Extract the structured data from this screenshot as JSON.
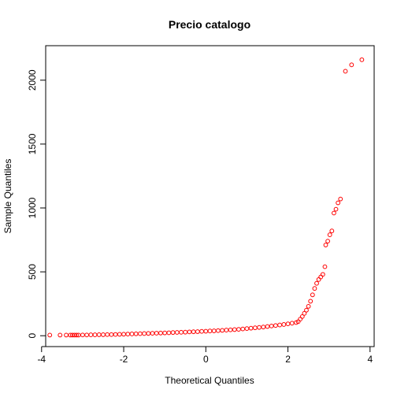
{
  "chart_data": {
    "type": "scatter",
    "title": "Precio catalogo",
    "xlabel": "Theoretical Quantiles",
    "ylabel": "Sample Quantiles",
    "xlim": [
      -3.9,
      4.1
    ],
    "ylim": [
      -85,
      2270
    ],
    "x_ticks": [
      -4,
      -2,
      0,
      2,
      4
    ],
    "y_ticks": [
      0,
      500,
      1000,
      1500,
      2000
    ],
    "point_color": "#ff0000",
    "marker": "open-circle",
    "grid": false,
    "series": [
      {
        "points": [
          [
            -3.8,
            5
          ],
          [
            -3.55,
            5
          ],
          [
            -3.4,
            5
          ],
          [
            -3.3,
            5
          ],
          [
            -3.25,
            5
          ],
          [
            -3.2,
            5
          ],
          [
            -3.15,
            5
          ],
          [
            -3.1,
            5
          ],
          [
            -3.0,
            6
          ],
          [
            -2.9,
            6
          ],
          [
            -2.8,
            7
          ],
          [
            -2.7,
            7
          ],
          [
            -2.6,
            8
          ],
          [
            -2.5,
            8
          ],
          [
            -2.4,
            9
          ],
          [
            -2.3,
            9
          ],
          [
            -2.2,
            10
          ],
          [
            -2.1,
            11
          ],
          [
            -2.0,
            12
          ],
          [
            -1.9,
            13
          ],
          [
            -1.8,
            14
          ],
          [
            -1.7,
            15
          ],
          [
            -1.6,
            16
          ],
          [
            -1.5,
            17
          ],
          [
            -1.4,
            18
          ],
          [
            -1.3,
            19
          ],
          [
            -1.2,
            20
          ],
          [
            -1.1,
            21
          ],
          [
            -1.0,
            22
          ],
          [
            -0.9,
            23
          ],
          [
            -0.8,
            25
          ],
          [
            -0.7,
            26
          ],
          [
            -0.6,
            27
          ],
          [
            -0.5,
            28
          ],
          [
            -0.4,
            30
          ],
          [
            -0.3,
            31
          ],
          [
            -0.2,
            32
          ],
          [
            -0.1,
            34
          ],
          [
            0.0,
            35
          ],
          [
            0.1,
            37
          ],
          [
            0.2,
            38
          ],
          [
            0.3,
            40
          ],
          [
            0.4,
            42
          ],
          [
            0.5,
            44
          ],
          [
            0.6,
            46
          ],
          [
            0.7,
            48
          ],
          [
            0.8,
            50
          ],
          [
            0.9,
            53
          ],
          [
            1.0,
            56
          ],
          [
            1.1,
            59
          ],
          [
            1.2,
            62
          ],
          [
            1.3,
            65
          ],
          [
            1.4,
            68
          ],
          [
            1.5,
            72
          ],
          [
            1.6,
            76
          ],
          [
            1.7,
            80
          ],
          [
            1.8,
            84
          ],
          [
            1.9,
            88
          ],
          [
            2.0,
            93
          ],
          [
            2.1,
            98
          ],
          [
            2.2,
            103
          ],
          [
            2.25,
            110
          ],
          [
            2.3,
            130
          ],
          [
            2.35,
            150
          ],
          [
            2.4,
            175
          ],
          [
            2.45,
            200
          ],
          [
            2.5,
            230
          ],
          [
            2.55,
            270
          ],
          [
            2.6,
            320
          ],
          [
            2.65,
            370
          ],
          [
            2.7,
            410
          ],
          [
            2.75,
            440
          ],
          [
            2.8,
            460
          ],
          [
            2.85,
            480
          ],
          [
            2.9,
            540
          ],
          [
            2.92,
            710
          ],
          [
            2.97,
            740
          ],
          [
            3.02,
            790
          ],
          [
            3.07,
            820
          ],
          [
            3.12,
            960
          ],
          [
            3.17,
            990
          ],
          [
            3.22,
            1040
          ],
          [
            3.28,
            1070
          ],
          [
            3.4,
            2070
          ],
          [
            3.55,
            2120
          ],
          [
            3.8,
            2160
          ]
        ]
      }
    ]
  }
}
